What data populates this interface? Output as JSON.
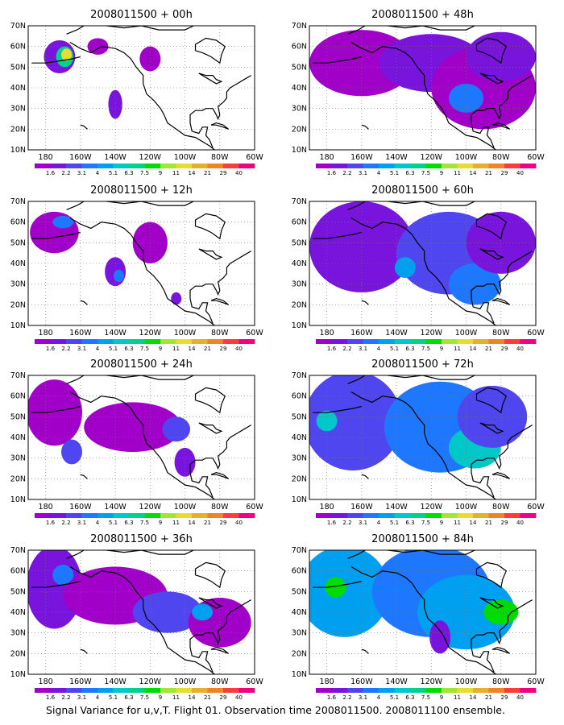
{
  "figure": {
    "caption": "Signal Variance for u,v,T. Flight 01. Observation time 2008011500. 2008011100 ensemble."
  },
  "panels": [
    {
      "title": "2008011500 + 00h",
      "lead_hours": 0
    },
    {
      "title": "2008011500 + 48h",
      "lead_hours": 48
    },
    {
      "title": "2008011500 + 12h",
      "lead_hours": 12
    },
    {
      "title": "2008011500 + 60h",
      "lead_hours": 60
    },
    {
      "title": "2008011500 + 24h",
      "lead_hours": 24
    },
    {
      "title": "2008011500 + 72h",
      "lead_hours": 72
    },
    {
      "title": "2008011500 + 36h",
      "lead_hours": 36
    },
    {
      "title": "2008011500 + 84h",
      "lead_hours": 84
    }
  ],
  "axes": {
    "lat_labels": [
      "70N",
      "60N",
      "50N",
      "40N",
      "30N",
      "20N",
      "10N"
    ],
    "lat_values": [
      70,
      60,
      50,
      40,
      30,
      20,
      10
    ],
    "lon_labels": [
      "180",
      "160W",
      "140W",
      "120W",
      "100W",
      "80W",
      "60W"
    ],
    "lon_values": [
      -180,
      -160,
      -140,
      -120,
      -100,
      -80,
      -60
    ],
    "lon_range": [
      -190,
      -60
    ],
    "lat_range": [
      10,
      70
    ],
    "grid": "dotted"
  },
  "colorbar": {
    "labels": [
      "1.6",
      "2.2",
      "3.1",
      "4",
      "5.1",
      "6.3",
      "7.5",
      "9",
      "11",
      "14",
      "21",
      "29",
      "40"
    ],
    "colors": [
      "#a000c8",
      "#7814dc",
      "#5046f0",
      "#1e78ff",
      "#00a0f0",
      "#00c8c8",
      "#00d28c",
      "#00dc00",
      "#a0e632",
      "#e6dc32",
      "#e6af2d",
      "#f08228",
      "#fa3c3c",
      "#f00082"
    ]
  }
}
